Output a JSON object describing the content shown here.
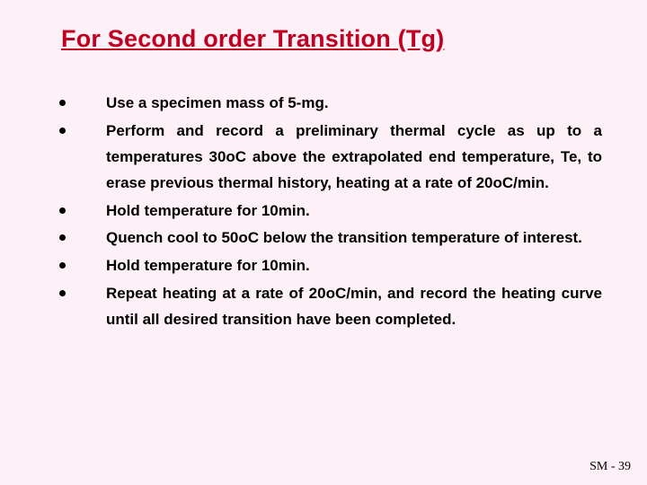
{
  "slide": {
    "background_color": "#fdf0f7",
    "title": {
      "text": "For Second order Transition (Tg)",
      "color": "#c00020",
      "fontsize": 27,
      "underline": true,
      "bold": true
    },
    "bullets": [
      "Use a specimen mass of 5-mg.",
      "Perform and record a preliminary thermal cycle as up to a temperatures 30oC above the extrapolated end temperature, Te, to erase previous thermal history, heating at a rate of 20oC/min.",
      "Hold temperature for 10min.",
      "Quench cool to 50oC below the transition temperature of interest.",
      "Hold temperature for 10min.",
      "Repeat heating at a rate of 20oC/min, and record the heating curve until all desired transition have been completed."
    ],
    "bullet_style": {
      "color": "#000000",
      "fontsize": 17,
      "bold": true,
      "marker": "disc",
      "align": "justify"
    },
    "footer": {
      "text": "SM - 39",
      "fontsize": 14,
      "color": "#000000"
    }
  }
}
